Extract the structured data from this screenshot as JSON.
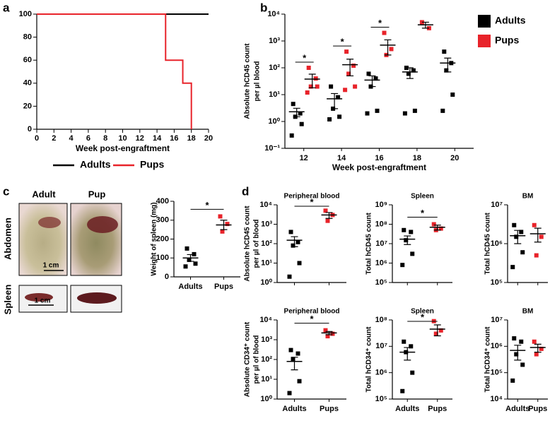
{
  "figure": {
    "panel_labels": [
      "a",
      "b",
      "c",
      "d"
    ],
    "photos": {
      "columns": [
        "Adult",
        "Pup"
      ],
      "rows": [
        "Abdomen",
        "Spleen"
      ],
      "scale_bars": [
        "1 cm",
        "1 cm"
      ]
    }
  },
  "chart_data": [
    {
      "type": "line",
      "xlabel": "Week post-engraftment",
      "xlim": [
        0,
        20
      ],
      "xticks": [
        0,
        2,
        4,
        6,
        8,
        10,
        12,
        14,
        16,
        18,
        20
      ],
      "ylim": [
        0,
        100
      ],
      "yticks": [
        0,
        20,
        40,
        60,
        80,
        100
      ],
      "legend": "bottom",
      "series": [
        {
          "name": "Adults",
          "color": "#000000",
          "x": [
            0,
            20
          ],
          "values": [
            100,
            100
          ]
        },
        {
          "name": "Pups",
          "color": "#e8232a",
          "x": [
            0,
            15,
            15,
            17,
            17,
            18,
            18
          ],
          "values": [
            100,
            100,
            60,
            60,
            40,
            40,
            0
          ]
        }
      ]
    },
    {
      "type": "scatter",
      "ylabel": [
        "Absolute hCD45 count",
        "per µl blood"
      ],
      "xlabel": "Week post-engraftment",
      "ylog": true,
      "categories": [
        "12",
        "14",
        "16",
        "18",
        "20"
      ],
      "ylim": [
        0.1,
        10000
      ],
      "yticks": [
        {
          "value": 0.1,
          "label": "10⁻¹"
        },
        {
          "value": 1,
          "label": "10⁰"
        },
        {
          "value": 10,
          "label": "10¹"
        },
        {
          "value": 100,
          "label": "10²"
        },
        {
          "value": 1000,
          "label": "10³"
        },
        {
          "value": 10000,
          "label": "10⁴"
        }
      ],
      "significance": [
        "*",
        "*",
        "*",
        null,
        null
      ],
      "legend": "right",
      "series": [
        {
          "name": "Adults",
          "color": "#000000",
          "values": [
            [
              4.5,
              2,
              1.5,
              0.8,
              0.3
            ],
            [
              20,
              8,
              3,
              1.5,
              1.2
            ],
            [
              60,
              40,
              20,
              2.5,
              2
            ],
            [
              100,
              80,
              60,
              2.5,
              2
            ],
            [
              400,
              150,
              80,
              10,
              2.5
            ]
          ],
          "mean": [
            2.3,
            7,
            35,
            70,
            150
          ],
          "sem": [
            0.8,
            4,
            15,
            30,
            80
          ]
        },
        {
          "name": "Pups",
          "color": "#e8232a",
          "values": [
            [
              100,
              40,
              20,
              20,
              12
            ],
            [
              400,
              120,
              60,
              20,
              15
            ],
            [
              2000,
              500,
              300
            ],
            [
              5000,
              3000
            ],
            null
          ],
          "mean": [
            38,
            130,
            700,
            4000,
            null
          ],
          "sem": [
            20,
            80,
            400,
            1000,
            null
          ]
        }
      ]
    },
    {
      "type": "scatter",
      "ylabel": [
        "Weight of spleen (mg)"
      ],
      "categories": [
        "Adults",
        "Pups"
      ],
      "ylim": [
        0,
        400
      ],
      "yticks": [
        0,
        100,
        200,
        300,
        400
      ],
      "colors": [
        "#000000",
        "#e8232a"
      ],
      "values": [
        [
          150,
          120,
          90,
          70,
          55
        ],
        [
          320,
          280,
          240
        ]
      ],
      "mean": [
        100,
        275
      ],
      "sem": [
        18,
        25
      ],
      "significance": "*"
    },
    {
      "type": "scatter",
      "title": "Peripheral blood",
      "ylabel": [
        "Absolute hCD45 count",
        "per µl of blood"
      ],
      "ylog": true,
      "categories": [
        null,
        null
      ],
      "ylim": [
        1,
        10000
      ],
      "yticks": [
        {
          "value": 1,
          "label": "10⁰"
        },
        {
          "value": 10,
          "label": "10¹"
        },
        {
          "value": 100,
          "label": "10²"
        },
        {
          "value": 1000,
          "label": "10³"
        },
        {
          "value": 10000,
          "label": "10⁴"
        }
      ],
      "colors": [
        "#000000",
        "#e8232a"
      ],
      "values": [
        [
          400,
          120,
          80,
          10,
          2
        ],
        [
          5000,
          3000,
          1500
        ]
      ],
      "mean": [
        150,
        3000
      ],
      "sem": [
        80,
        1000
      ],
      "significance": "*"
    },
    {
      "type": "scatter",
      "title": "Spleen",
      "ylabel": [
        "Total hCD45 count"
      ],
      "ylog": true,
      "categories": [
        null,
        null
      ],
      "ylim": [
        100000,
        1000000000
      ],
      "yticks": [
        {
          "value": 100000,
          "label": "10⁵"
        },
        {
          "value": 1000000,
          "label": "10⁶"
        },
        {
          "value": 10000000,
          "label": "10⁷"
        },
        {
          "value": 100000000,
          "label": "10⁸"
        },
        {
          "value": 1000000000,
          "label": "10⁹"
        }
      ],
      "colors": [
        "#000000",
        "#e8232a"
      ],
      "values": [
        [
          50000000,
          40000000,
          15000000,
          3000000,
          800000
        ],
        [
          100000000,
          60000000,
          50000000
        ]
      ],
      "mean": [
        17000000,
        70000000
      ],
      "sem": [
        8000000,
        20000000
      ],
      "significance": "*"
    },
    {
      "type": "scatter",
      "title": "BM",
      "ylabel": [
        "Total hCD45 count"
      ],
      "ylog": true,
      "categories": [
        null,
        null
      ],
      "ylim": [
        100000,
        10000000
      ],
      "yticks": [
        {
          "value": 100000,
          "label": "10⁵"
        },
        {
          "value": 1000000,
          "label": "10⁶"
        },
        {
          "value": 10000000,
          "label": "10⁷"
        }
      ],
      "colors": [
        "#000000",
        "#e8232a"
      ],
      "values": [
        [
          3000000,
          2000000,
          1500000,
          600000,
          250000
        ],
        [
          3000000,
          1500000,
          500000
        ]
      ],
      "mean": [
        1600000,
        1800000
      ],
      "sem": [
        600000,
        700000
      ]
    },
    {
      "type": "scatter",
      "title": "Peripheral blood",
      "ylabel": [
        "Absolute CD34⁺ count",
        "per µl of blood"
      ],
      "ylog": true,
      "categories": [
        "Adults",
        "Pups"
      ],
      "ylim": [
        1,
        10000
      ],
      "yticks": [
        {
          "value": 1,
          "label": "10⁰"
        },
        {
          "value": 10,
          "label": "10¹"
        },
        {
          "value": 100,
          "label": "10²"
        },
        {
          "value": 1000,
          "label": "10³"
        },
        {
          "value": 10000,
          "label": "10⁴"
        }
      ],
      "colors": [
        "#000000",
        "#e8232a"
      ],
      "values": [
        [
          300,
          200,
          100,
          8,
          2
        ],
        [
          3000,
          2000,
          1500
        ]
      ],
      "mean": [
        80,
        2200
      ],
      "sem": [
        50,
        400
      ],
      "significance": "*"
    },
    {
      "type": "scatter",
      "title": "Spleen",
      "ylabel": [
        "Total hCD34⁺ count"
      ],
      "ylog": true,
      "categories": [
        "Adults",
        "Pups"
      ],
      "ylim": [
        100000,
        100000000
      ],
      "yticks": [
        {
          "value": 100000,
          "label": "10⁵"
        },
        {
          "value": 1000000,
          "label": "10⁶"
        },
        {
          "value": 10000000,
          "label": "10⁷"
        },
        {
          "value": 100000000,
          "label": "10⁸"
        }
      ],
      "colors": [
        "#000000",
        "#e8232a"
      ],
      "values": [
        [
          15000000,
          10000000,
          6000000,
          1000000,
          200000
        ],
        [
          90000000,
          40000000,
          30000000
        ]
      ],
      "mean": [
        6000000,
        45000000
      ],
      "sem": [
        3000000,
        20000000
      ],
      "significance": "*"
    },
    {
      "type": "scatter",
      "title": "BM",
      "ylabel": [
        "Total hCD34⁺ count"
      ],
      "ylog": true,
      "categories": [
        "Adults",
        "Pups"
      ],
      "ylim": [
        10000,
        10000000
      ],
      "yticks": [
        {
          "value": 10000,
          "label": "10⁴"
        },
        {
          "value": 100000,
          "label": "10⁵"
        },
        {
          "value": 1000000,
          "label": "10⁶"
        },
        {
          "value": 10000000,
          "label": "10⁷"
        }
      ],
      "colors": [
        "#000000",
        "#e8232a"
      ],
      "values": [
        [
          2000000,
          1500000,
          500000,
          200000,
          50000
        ],
        [
          1500000,
          800000,
          500000
        ]
      ],
      "mean": [
        700000,
        900000
      ],
      "sem": [
        400000,
        300000
      ]
    }
  ]
}
